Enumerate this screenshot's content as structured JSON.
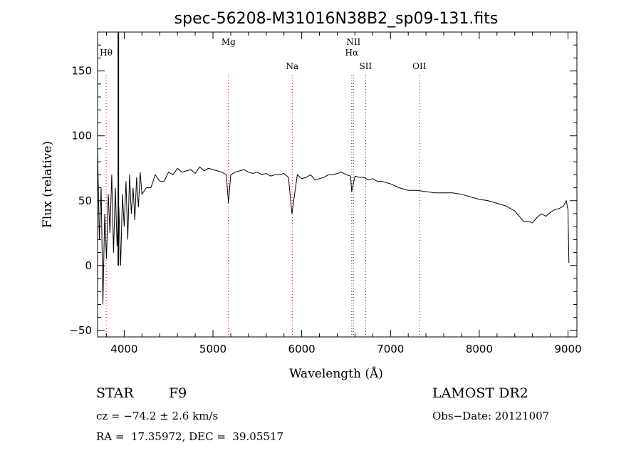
{
  "chart_data": {
    "type": "line",
    "title": "spec-56208-M31016N38B2_sp09-131.fits",
    "xlabel": "Wavelength (Å)",
    "ylabel": "Flux (relative)",
    "xlim": [
      3700,
      9100
    ],
    "ylim": [
      -55,
      180
    ],
    "xticks": [
      4000,
      5000,
      6000,
      7000,
      8000,
      9000
    ],
    "yticks": [
      -50,
      0,
      50,
      100,
      150
    ],
    "xtick_labels": [
      "4000",
      "5000",
      "6000",
      "7000",
      "8000",
      "9000"
    ],
    "ytick_labels": [
      "−50",
      "0",
      "50",
      "100",
      "150"
    ],
    "grid": false,
    "series_color": "#000000",
    "line_color": "#cc0000",
    "spectrum": {
      "x": [
        3700,
        3720,
        3740,
        3760,
        3780,
        3800,
        3820,
        3840,
        3860,
        3880,
        3900,
        3920,
        3940,
        3960,
        3980,
        4000,
        4020,
        4040,
        4060,
        4080,
        4100,
        4120,
        4140,
        4160,
        4180,
        4200,
        4250,
        4300,
        4350,
        4400,
        4450,
        4500,
        4550,
        4600,
        4650,
        4700,
        4750,
        4800,
        4850,
        4900,
        4950,
        5000,
        5050,
        5100,
        5150,
        5175,
        5200,
        5250,
        5300,
        5350,
        5400,
        5450,
        5500,
        5550,
        5600,
        5650,
        5700,
        5750,
        5800,
        5850,
        5890,
        5950,
        6000,
        6050,
        6100,
        6150,
        6200,
        6250,
        6300,
        6350,
        6400,
        6450,
        6500,
        6550,
        6563,
        6600,
        6650,
        6700,
        6750,
        6800,
        6850,
        6900,
        6950,
        7000,
        7100,
        7200,
        7300,
        7400,
        7500,
        7600,
        7700,
        7800,
        7900,
        8000,
        8100,
        8200,
        8300,
        8400,
        8450,
        8500,
        8550,
        8600,
        8650,
        8700,
        8750,
        8800,
        8850,
        8900,
        8950,
        8980,
        9000,
        9010
      ],
      "y": [
        90,
        20,
        60,
        -30,
        40,
        5,
        55,
        25,
        70,
        10,
        60,
        15,
        45,
        0,
        55,
        30,
        65,
        20,
        70,
        40,
        60,
        35,
        68,
        45,
        72,
        55,
        60,
        60,
        70,
        65,
        65,
        72,
        70,
        75,
        72,
        73,
        74,
        71,
        76,
        73,
        75,
        74,
        73,
        72,
        70,
        48,
        70,
        72,
        73,
        74,
        72,
        71,
        72,
        70,
        71,
        69,
        70,
        70,
        71,
        68,
        40,
        70,
        67,
        68,
        70,
        66,
        67,
        68,
        70,
        70,
        71,
        72,
        70,
        69,
        57,
        69,
        68,
        68,
        66,
        67,
        65,
        65,
        64,
        63,
        60,
        58,
        58,
        57,
        56,
        56,
        56,
        55,
        53,
        51,
        50,
        48,
        46,
        42,
        38,
        34,
        34,
        33,
        37,
        40,
        38,
        41,
        43,
        44,
        46,
        50,
        43,
        2
      ]
    },
    "lines": [
      {
        "label": "Hθ",
        "x": 3797
      },
      {
        "label": "Mg",
        "x": 5175
      },
      {
        "label": "Na",
        "x": 5893
      },
      {
        "label": "NII",
        "x": 6583
      },
      {
        "label": "Hα",
        "x": 6563
      },
      {
        "label": "SII",
        "x": 6720
      },
      {
        "label": "OII",
        "x": 7325
      }
    ],
    "spike_x": 3934,
    "spike_top": 180
  },
  "info": {
    "object_type": "STAR",
    "subclass": "F9",
    "survey": "LAMOST DR2",
    "redshift": "cz = −74.2 ± 2.6 km/s",
    "obs_date": "Obs−Date: 20121007",
    "coords": "RA =  17.35972, DEC =  39.05517"
  }
}
